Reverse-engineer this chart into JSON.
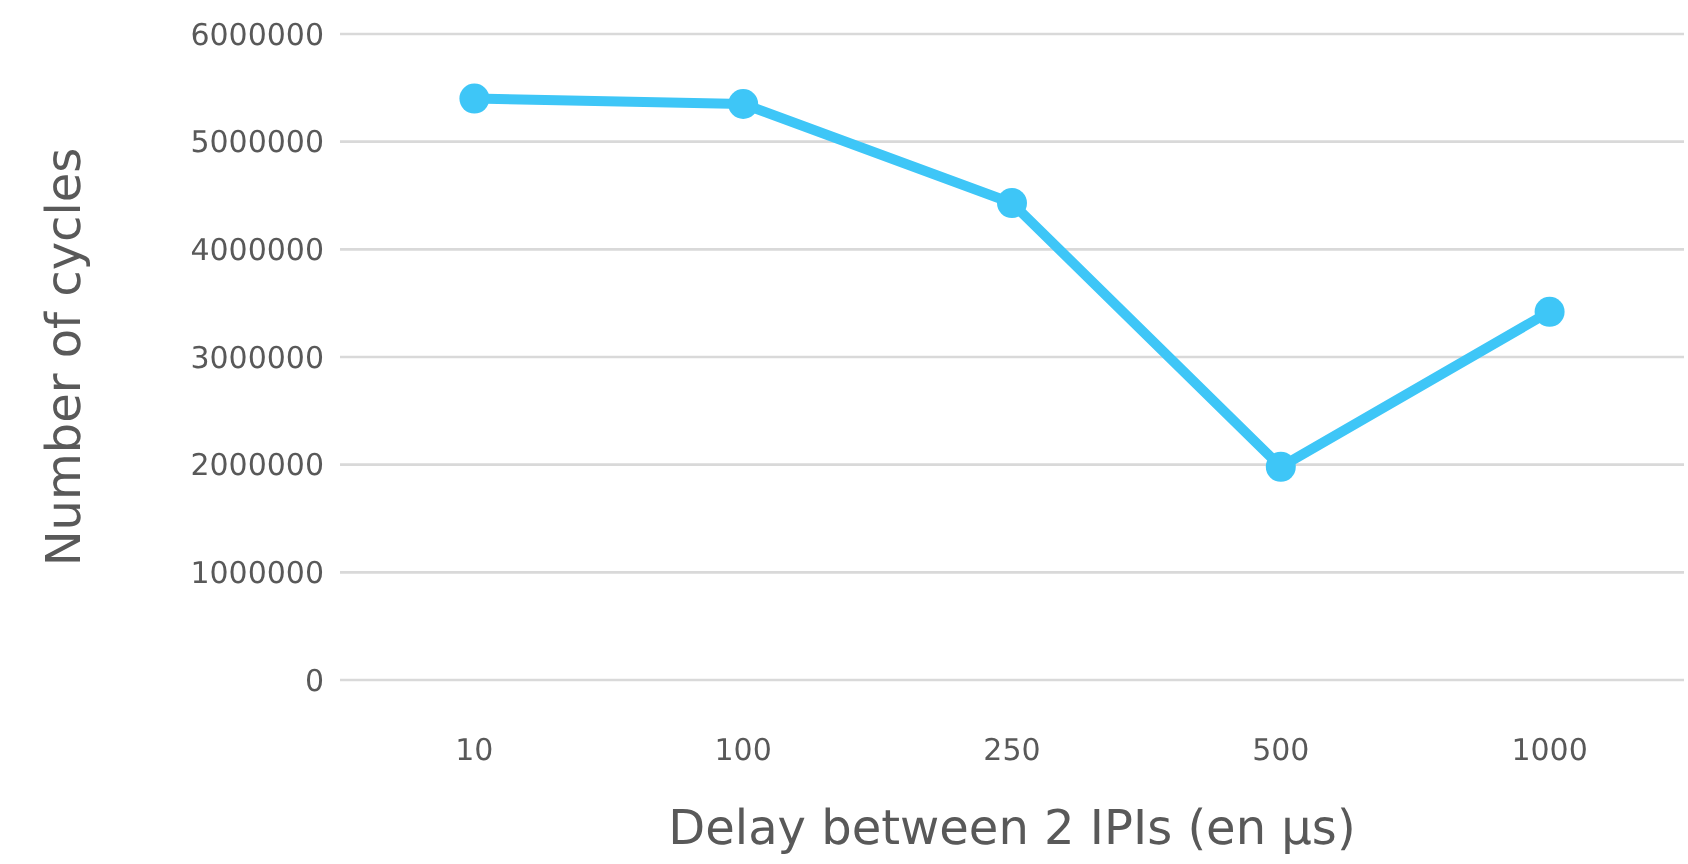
{
  "chart_data": {
    "type": "line",
    "xlabel": "Delay between 2 IPIs (en µs)",
    "ylabel": "Number of cycles",
    "categories": [
      "10",
      "100",
      "250",
      "500",
      "1000"
    ],
    "series": [
      {
        "color": "#3ec6f7",
        "values": [
          5400000,
          5350000,
          4430000,
          1980000,
          3420000
        ]
      }
    ],
    "ylim": [
      0,
      6000000
    ],
    "yticks": [
      0,
      1000000,
      2000000,
      3000000,
      4000000,
      5000000,
      6000000
    ],
    "grid": "y",
    "marker": "circle",
    "line_style": "solid"
  }
}
